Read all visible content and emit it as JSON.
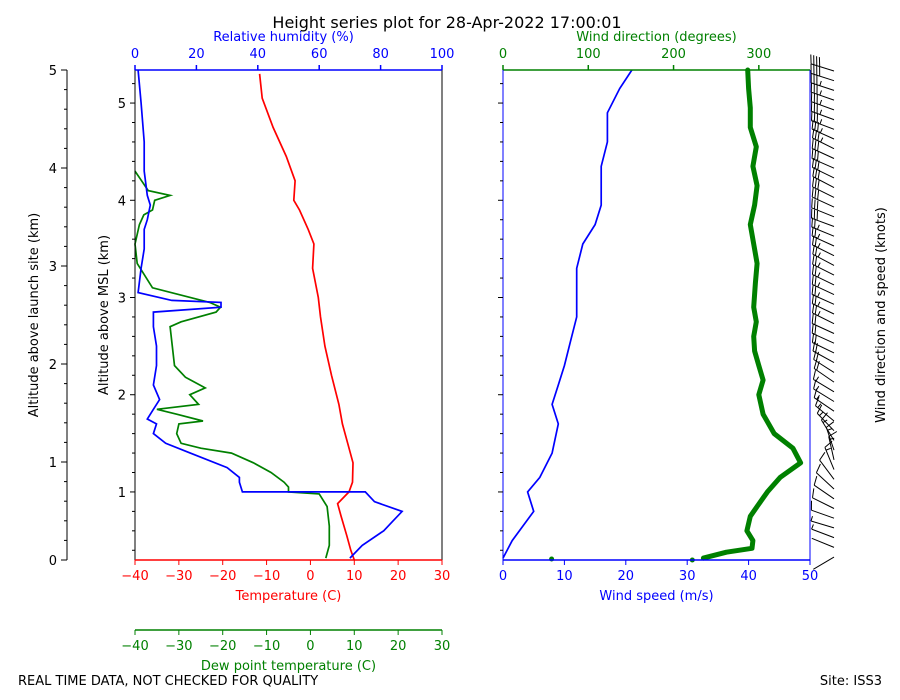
{
  "title": "Height series plot for 28-Apr-2022 17:00:01",
  "footer_left": "REAL TIME DATA, NOT CHECKED FOR QUALITY",
  "footer_right": "Site: ISS3",
  "colors": {
    "temperature": "#ff0000",
    "dewpoint": "#008000",
    "rh": "#0000ff",
    "wind_speed": "#0000ff",
    "wind_dir": "#008000",
    "axis": "#000000"
  },
  "chart_data": [
    {
      "type": "line",
      "name": "thermo-panel",
      "title": "Height series plot for 28-Apr-2022 17:00:01",
      "axes": {
        "temperature": {
          "label": "Temperature (C)",
          "range": [
            -40,
            30
          ],
          "ticks": [
            "−40",
            "−30",
            "−20",
            "−10",
            "0",
            "10",
            "20",
            "30"
          ]
        },
        "dewpoint": {
          "label": "Dew point temperature (C)",
          "range": [
            -40,
            30
          ],
          "ticks": [
            "−40",
            "−30",
            "−20",
            "−10",
            "0",
            "10",
            "20",
            "30"
          ]
        },
        "rh": {
          "label": "Relative humidity (%)",
          "range": [
            0,
            100
          ],
          "ticks": [
            "0",
            "20",
            "40",
            "60",
            "80",
            "100"
          ]
        },
        "msl": {
          "label": "Altitude above MSL (km)",
          "range": [
            0.3,
            5.34
          ],
          "ticks": [
            "1",
            "2",
            "3",
            "4",
            "5"
          ]
        },
        "agl": {
          "label": "Altitude above launch site (km)",
          "range": [
            0,
            5
          ],
          "ticks": [
            "0",
            "1",
            "2",
            "3",
            "4",
            "5"
          ]
        }
      },
      "series": [
        {
          "name": "Temperature",
          "axis": "temperature",
          "points": [
            [
              10,
              0.3
            ],
            [
              9.2,
              0.4
            ],
            [
              8.3,
              0.55
            ],
            [
              7.0,
              0.75
            ],
            [
              6.2,
              0.88
            ],
            [
              8.8,
              1.0
            ],
            [
              9.6,
              1.1
            ],
            [
              9.7,
              1.3
            ],
            [
              8.5,
              1.5
            ],
            [
              7.3,
              1.7
            ],
            [
              6.5,
              1.9
            ],
            [
              4.8,
              2.2
            ],
            [
              3.3,
              2.5
            ],
            [
              2.3,
              2.8
            ],
            [
              1.8,
              3.0
            ],
            [
              0.5,
              3.3
            ],
            [
              0.8,
              3.55
            ],
            [
              -0.5,
              3.7
            ],
            [
              -2.5,
              3.9
            ],
            [
              -3.8,
              4.0
            ],
            [
              -3.5,
              4.2
            ],
            [
              -5.5,
              4.45
            ],
            [
              -8.5,
              4.75
            ],
            [
              -11.0,
              5.05
            ],
            [
              -11.6,
              5.3
            ]
          ]
        },
        {
          "name": "Dew point",
          "axis": "dewpoint",
          "points": [
            [
              3.5,
              0.32
            ],
            [
              4.3,
              0.45
            ],
            [
              4.3,
              0.65
            ],
            [
              3.8,
              0.85
            ],
            [
              2.0,
              0.98
            ],
            [
              -5.0,
              1.0
            ],
            [
              -5.0,
              1.05
            ],
            [
              -6.0,
              1.1
            ],
            [
              -9.0,
              1.2
            ],
            [
              -13.0,
              1.3
            ],
            [
              -18.0,
              1.4
            ],
            [
              -25.0,
              1.45
            ],
            [
              -29.5,
              1.5
            ],
            [
              -30.5,
              1.6
            ],
            [
              -30.0,
              1.7
            ],
            [
              -24.5,
              1.73
            ],
            [
              -30.5,
              1.8
            ],
            [
              -35.0,
              1.85
            ],
            [
              -25.5,
              1.9
            ],
            [
              -27.5,
              2.0
            ],
            [
              -24.0,
              2.07
            ],
            [
              -28.5,
              2.18
            ],
            [
              -31.0,
              2.3
            ],
            [
              -31.5,
              2.5
            ],
            [
              -32.0,
              2.7
            ],
            [
              -29.5,
              2.75
            ],
            [
              -21.5,
              2.85
            ],
            [
              -20.5,
              2.9
            ],
            [
              -23.0,
              2.95
            ],
            [
              -36.0,
              3.1
            ],
            [
              -39.5,
              3.35
            ],
            [
              -40,
              3.55
            ],
            [
              -39.0,
              3.75
            ],
            [
              -38.0,
              3.85
            ],
            [
              -36.0,
              3.9
            ],
            [
              -35.5,
              4.0
            ],
            [
              -32.0,
              4.05
            ],
            [
              -37.0,
              4.1
            ],
            [
              -38.5,
              4.2
            ],
            [
              -40,
              4.3
            ]
          ]
        },
        {
          "name": "Relative humidity",
          "axis": "rh",
          "points": [
            [
              70,
              0.32
            ],
            [
              74,
              0.45
            ],
            [
              81,
              0.6
            ],
            [
              84,
              0.7
            ],
            [
              87,
              0.8
            ],
            [
              78,
              0.9
            ],
            [
              75,
              1.0
            ],
            [
              35,
              1.0
            ],
            [
              34,
              1.1
            ],
            [
              34,
              1.15
            ],
            [
              30,
              1.25
            ],
            [
              18,
              1.4
            ],
            [
              10,
              1.5
            ],
            [
              6,
              1.6
            ],
            [
              7,
              1.7
            ],
            [
              4,
              1.75
            ],
            [
              6,
              1.85
            ],
            [
              8,
              1.95
            ],
            [
              6,
              2.1
            ],
            [
              7,
              2.3
            ],
            [
              7,
              2.5
            ],
            [
              6,
              2.7
            ],
            [
              6,
              2.85
            ],
            [
              28,
              2.9
            ],
            [
              28,
              2.95
            ],
            [
              12,
              2.97
            ],
            [
              1,
              3.05
            ],
            [
              2,
              3.3
            ],
            [
              3,
              3.5
            ],
            [
              3,
              3.7
            ],
            [
              4,
              3.8
            ],
            [
              5,
              3.95
            ],
            [
              4,
              4.05
            ],
            [
              3,
              4.3
            ],
            [
              3,
              4.6
            ],
            [
              2,
              5.0
            ],
            [
              1,
              5.34
            ]
          ]
        }
      ]
    },
    {
      "type": "line",
      "name": "wind-panel",
      "axes": {
        "wind_speed": {
          "label": "Wind speed (m/s)",
          "range": [
            0,
            50
          ],
          "ticks": [
            "0",
            "10",
            "20",
            "30",
            "40",
            "50"
          ]
        },
        "wind_dir": {
          "label": "Wind direction (degrees)",
          "range": [
            0,
            360
          ],
          "ticks": [
            "0",
            "100",
            "200",
            "300"
          ]
        },
        "barbs": {
          "label": "Wind direction and speed (knots)"
        }
      },
      "series": [
        {
          "name": "Wind speed",
          "axis": "wind_speed",
          "points": [
            [
              0,
              0.32
            ],
            [
              1.5,
              0.5
            ],
            [
              5,
              0.8
            ],
            [
              4,
              1.0
            ],
            [
              6,
              1.15
            ],
            [
              8,
              1.4
            ],
            [
              9,
              1.7
            ],
            [
              8,
              1.9
            ],
            [
              9,
              2.1
            ],
            [
              10,
              2.3
            ],
            [
              11,
              2.55
            ],
            [
              12,
              2.8
            ],
            [
              12,
              3.05
            ],
            [
              12,
              3.3
            ],
            [
              13,
              3.55
            ],
            [
              15,
              3.75
            ],
            [
              16,
              3.95
            ],
            [
              16,
              4.15
            ],
            [
              16,
              4.35
            ],
            [
              17,
              4.6
            ],
            [
              17,
              4.9
            ],
            [
              19,
              5.15
            ],
            [
              21,
              5.34
            ]
          ]
        },
        {
          "name": "Wind direction",
          "axis": "wind_dir",
          "points": [
            [
              235,
              0.32
            ],
            [
              262,
              0.38
            ],
            [
              292,
              0.42
            ],
            [
              293,
              0.5
            ],
            [
              286,
              0.6
            ],
            [
              290,
              0.75
            ],
            [
              298,
              0.85
            ],
            [
              310,
              1.0
            ],
            [
              325,
              1.15
            ],
            [
              349,
              1.3
            ],
            [
              340,
              1.45
            ],
            [
              318,
              1.6
            ],
            [
              305,
              1.8
            ],
            [
              300,
              2.0
            ],
            [
              305,
              2.15
            ],
            [
              300,
              2.3
            ],
            [
              295,
              2.45
            ],
            [
              294,
              2.6
            ],
            [
              297,
              2.75
            ],
            [
              294,
              2.9
            ],
            [
              296,
              3.15
            ],
            [
              298,
              3.35
            ],
            [
              294,
              3.55
            ],
            [
              290,
              3.75
            ],
            [
              295,
              3.95
            ],
            [
              298,
              4.15
            ],
            [
              293,
              4.35
            ],
            [
              297,
              4.55
            ],
            [
              290,
              4.75
            ],
            [
              290,
              4.95
            ],
            [
              288,
              5.15
            ],
            [
              287,
              5.34
            ]
          ]
        }
      ]
    }
  ]
}
